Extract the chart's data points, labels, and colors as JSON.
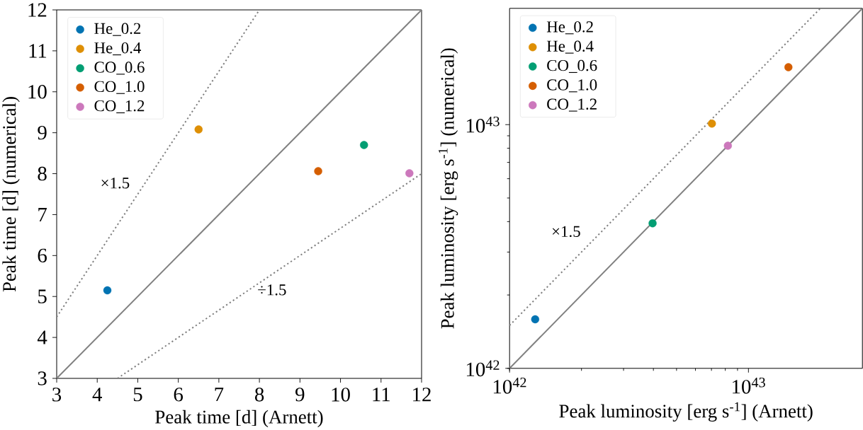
{
  "chart_data": [
    {
      "type": "scatter",
      "xlabel": "Peak time [d] (Arnett)",
      "ylabel": "Peak time [d] (numerical)",
      "xlim": [
        3,
        12
      ],
      "ylim": [
        3,
        12
      ],
      "xticks": [
        3,
        4,
        5,
        6,
        7,
        8,
        9,
        10,
        11,
        12
      ],
      "yticks": [
        3,
        4,
        5,
        6,
        7,
        8,
        9,
        10,
        11,
        12
      ],
      "grid": false,
      "legend": "top left",
      "series": [
        {
          "name": "He_0.2",
          "color": "#0173b2",
          "marker": "circle",
          "x": [
            4.25
          ],
          "values": [
            5.15
          ]
        },
        {
          "name": "He_0.4",
          "color": "#de8f05",
          "marker": "circle",
          "x": [
            6.5
          ],
          "values": [
            9.08
          ]
        },
        {
          "name": "CO_0.6",
          "color": "#029e73",
          "marker": "circle",
          "x": [
            10.58
          ],
          "values": [
            8.7
          ]
        },
        {
          "name": "CO_1.0",
          "color": "#d55e00",
          "marker": "circle",
          "x": [
            9.45
          ],
          "values": [
            8.06
          ]
        },
        {
          "name": "CO_1.2",
          "color": "#cc78bc",
          "marker": "circle",
          "x": [
            11.7
          ],
          "values": [
            8.01
          ]
        },
        {
          "type": "line",
          "color": "#808080",
          "line_style": "solid",
          "marker": "none",
          "x": [
            3,
            12
          ],
          "values": [
            3,
            12
          ]
        },
        {
          "type": "line",
          "color": "#808080",
          "line_style": "dotted",
          "marker": "none",
          "x": [
            3,
            8
          ],
          "values": [
            4.5,
            12
          ]
        },
        {
          "type": "line",
          "color": "#808080",
          "line_style": "dotted",
          "marker": "none",
          "x": [
            4.5,
            12
          ],
          "values": [
            3,
            8
          ]
        }
      ],
      "annotations": [
        "×1.5",
        "÷1.5"
      ]
    },
    {
      "type": "scatter",
      "xlabel": "Peak luminosity [erg s$^{-1}$] (Arnett)",
      "ylabel": "Peak luminosity [erg s$^{-1}$] (numerical)",
      "log": "xy",
      "xlim": [
        1e+42,
        3e+43
      ],
      "ylim": [
        1e+42,
        3e+43
      ],
      "xticks": [
        {
          "value": 1e+42,
          "label": "10$^{42}$"
        },
        {
          "value": 1e+43,
          "label": "10$^{43}$"
        }
      ],
      "yticks": [
        {
          "value": 1e+42,
          "label": "10$^{42}$"
        },
        {
          "value": 1e+43,
          "label": "10$^{43}$"
        }
      ],
      "grid": false,
      "legend": "top left",
      "series": [
        {
          "name": "He_0.2",
          "color": "#0173b2",
          "marker": "circle",
          "x": [
            1.28e+42
          ],
          "values": [
            1.59e+42
          ]
        },
        {
          "name": "He_0.4",
          "color": "#de8f05",
          "marker": "circle",
          "x": [
            7.03e+42
          ],
          "values": [
            1.01e+43
          ]
        },
        {
          "name": "CO_0.6",
          "color": "#029e73",
          "marker": "circle",
          "x": [
            3.97e+42
          ],
          "values": [
            3.94e+42
          ]
        },
        {
          "name": "CO_1.0",
          "color": "#d55e00",
          "marker": "circle",
          "x": [
            1.47e+43
          ],
          "values": [
            1.72e+43
          ]
        },
        {
          "name": "CO_1.2",
          "color": "#cc78bc",
          "marker": "circle",
          "x": [
            8.2e+42
          ],
          "values": [
            8.19e+42
          ]
        },
        {
          "type": "line",
          "color": "#808080",
          "line_style": "solid",
          "marker": "none",
          "x": [
            1e+42,
            3e+43
          ],
          "values": [
            1e+42,
            3e+43
          ]
        },
        {
          "type": "line",
          "color": "#808080",
          "line_style": "dotted",
          "marker": "none",
          "x": [
            1e+42,
            2e+43
          ],
          "values": [
            1.5e+42,
            3e+43
          ]
        }
      ],
      "annotations": [
        "×1.5"
      ]
    }
  ]
}
